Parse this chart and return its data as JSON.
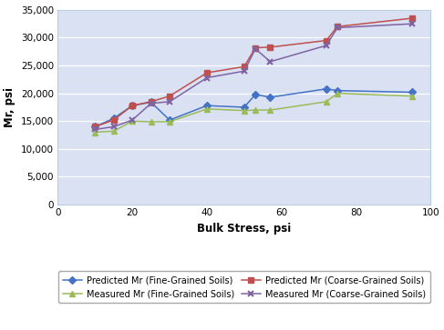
{
  "x": [
    10,
    15,
    20,
    25,
    30,
    40,
    50,
    53,
    57,
    72,
    75,
    95
  ],
  "predicted_fine": [
    14000,
    15500,
    17800,
    18400,
    15200,
    17800,
    17500,
    19800,
    19300,
    20800,
    20500,
    20200
  ],
  "predicted_coarse": [
    14000,
    15200,
    17800,
    18500,
    19500,
    23700,
    24800,
    28200,
    28300,
    29500,
    32000,
    33500
  ],
  "measured_fine": [
    13000,
    13200,
    15000,
    14900,
    14900,
    17200,
    16900,
    17000,
    17000,
    18500,
    20000,
    19500
  ],
  "measured_coarse": [
    13500,
    14000,
    15200,
    18200,
    18500,
    22800,
    24000,
    28000,
    25700,
    28600,
    31800,
    32500
  ],
  "xlabel": "Bulk Stress, psi",
  "ylabel": "Mr, psi",
  "xlim": [
    0,
    100
  ],
  "ylim": [
    0,
    35000
  ],
  "xticks": [
    0,
    20,
    40,
    60,
    80,
    100
  ],
  "yticks": [
    0,
    5000,
    10000,
    15000,
    20000,
    25000,
    30000,
    35000
  ],
  "legend_labels": [
    "Predicted Mr (Fine-Grained Soils)",
    "Predicted Mr (Coarse-Grained Soils)",
    "Measured Mr (Fine-Grained Soils)",
    "Measured Mr (Coarse-Grained Soils)"
  ],
  "colors": [
    "#4472C4",
    "#C0504D",
    "#9BBB59",
    "#8064A2"
  ],
  "plot_area_bg": "#D9E1F2",
  "fig_bg": "#FFFFFF",
  "grid_color": "#FFFFFF",
  "spine_color": "#B8CCE4"
}
